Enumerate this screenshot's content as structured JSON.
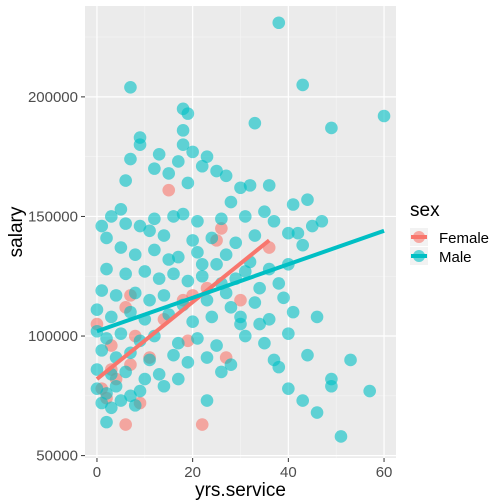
{
  "chart_data": {
    "type": "scatter",
    "xlabel": "yrs.service",
    "ylabel": "salary",
    "xlim": [
      -2.5,
      62.5
    ],
    "ylim": [
      49000,
      238000
    ],
    "x_ticks": [
      0,
      20,
      40,
      60
    ],
    "x_tick_labels": [
      "0",
      "20",
      "40",
      "60"
    ],
    "y_ticks": [
      50000,
      100000,
      150000,
      200000
    ],
    "y_tick_labels": [
      "50000",
      "100000",
      "150000",
      "200000"
    ],
    "grid": true,
    "legend": {
      "title": "sex",
      "position": "right"
    },
    "series": [
      {
        "name": "Female",
        "color": "#F8766D",
        "points": [
          [
            0,
            105000
          ],
          [
            1,
            78000
          ],
          [
            2,
            74000
          ],
          [
            3,
            96000
          ],
          [
            3,
            86000
          ],
          [
            4,
            82000
          ],
          [
            6,
            112000
          ],
          [
            6,
            63000
          ],
          [
            7,
            117000
          ],
          [
            7,
            88000
          ],
          [
            8,
            100000
          ],
          [
            9,
            72000
          ],
          [
            11,
            91000
          ],
          [
            14,
            107000
          ],
          [
            15,
            161000
          ],
          [
            18,
            115000
          ],
          [
            19,
            98000
          ],
          [
            20,
            117000
          ],
          [
            22,
            63000
          ],
          [
            23,
            120000
          ],
          [
            25,
            140000
          ],
          [
            26,
            145000
          ],
          [
            27,
            91000
          ],
          [
            30,
            115000
          ],
          [
            36,
            137000
          ]
        ],
        "trend": {
          "x": [
            0,
            36
          ],
          "y": [
            82000,
            140000
          ]
        }
      },
      {
        "name": "Male",
        "color": "#00BFC4",
        "points": [
          [
            7,
            204000
          ],
          [
            38,
            231000
          ],
          [
            43,
            205000
          ],
          [
            60,
            192000
          ],
          [
            33,
            189000
          ],
          [
            49,
            187000
          ],
          [
            18,
            195000
          ],
          [
            19,
            193000
          ],
          [
            18,
            186000
          ],
          [
            9,
            183000
          ],
          [
            9,
            180000
          ],
          [
            18,
            180000
          ],
          [
            13,
            176000
          ],
          [
            20,
            177000
          ],
          [
            23,
            175000
          ],
          [
            6,
            165000
          ],
          [
            7,
            174000
          ],
          [
            12,
            170000
          ],
          [
            15,
            168000
          ],
          [
            17,
            173000
          ],
          [
            25,
            169000
          ],
          [
            27,
            167000
          ],
          [
            30,
            162000
          ],
          [
            32,
            163000
          ],
          [
            19,
            164000
          ],
          [
            22,
            171000
          ],
          [
            28,
            156000
          ],
          [
            36,
            163000
          ],
          [
            41,
            155000
          ],
          [
            44,
            157000
          ],
          [
            5,
            153000
          ],
          [
            3,
            150000
          ],
          [
            12,
            149000
          ],
          [
            16,
            150000
          ],
          [
            18,
            151000
          ],
          [
            21,
            148000
          ],
          [
            26,
            149000
          ],
          [
            31,
            150000
          ],
          [
            35,
            152000
          ],
          [
            37,
            148000
          ],
          [
            42,
            143000
          ],
          [
            45,
            146000
          ],
          [
            47,
            148000
          ],
          [
            1,
            146000
          ],
          [
            2,
            141000
          ],
          [
            6,
            147000
          ],
          [
            9,
            146000
          ],
          [
            11,
            144000
          ],
          [
            14,
            142000
          ],
          [
            20,
            140000
          ],
          [
            24,
            141000
          ],
          [
            29,
            139000
          ],
          [
            33,
            142000
          ],
          [
            40,
            143000
          ],
          [
            43,
            138000
          ],
          [
            5,
            137000
          ],
          [
            8,
            134000
          ],
          [
            12,
            136000
          ],
          [
            15,
            132000
          ],
          [
            17,
            133000
          ],
          [
            21,
            135000
          ],
          [
            25,
            130000
          ],
          [
            27,
            134000
          ],
          [
            32,
            131000
          ],
          [
            36,
            128000
          ],
          [
            2,
            128000
          ],
          [
            6,
            126000
          ],
          [
            10,
            127000
          ],
          [
            13,
            124000
          ],
          [
            16,
            126000
          ],
          [
            19,
            123000
          ],
          [
            22,
            125000
          ],
          [
            26,
            122000
          ],
          [
            29,
            124000
          ],
          [
            34,
            120000
          ],
          [
            38,
            122000
          ],
          [
            1,
            119000
          ],
          [
            4,
            117000
          ],
          [
            8,
            118000
          ],
          [
            11,
            115000
          ],
          [
            14,
            117000
          ],
          [
            18,
            113000
          ],
          [
            23,
            115000
          ],
          [
            28,
            112000
          ],
          [
            33,
            114000
          ],
          [
            39,
            116000
          ],
          [
            0,
            111000
          ],
          [
            3,
            108000
          ],
          [
            7,
            110000
          ],
          [
            10,
            107000
          ],
          [
            15,
            109000
          ],
          [
            20,
            106000
          ],
          [
            24,
            108000
          ],
          [
            30,
            105000
          ],
          [
            36,
            107000
          ],
          [
            41,
            110000
          ],
          [
            46,
            108000
          ],
          [
            0,
            102000
          ],
          [
            2,
            99000
          ],
          [
            5,
            101000
          ],
          [
            9,
            98000
          ],
          [
            12,
            100000
          ],
          [
            17,
            97000
          ],
          [
            21,
            99000
          ],
          [
            25,
            96000
          ],
          [
            31,
            100000
          ],
          [
            35,
            97000
          ],
          [
            40,
            101000
          ],
          [
            1,
            94000
          ],
          [
            4,
            91000
          ],
          [
            7,
            93000
          ],
          [
            11,
            90000
          ],
          [
            16,
            92000
          ],
          [
            19,
            89000
          ],
          [
            23,
            91000
          ],
          [
            28,
            88000
          ],
          [
            37,
            90000
          ],
          [
            44,
            92000
          ],
          [
            53,
            90000
          ],
          [
            0,
            86000
          ],
          [
            3,
            84000
          ],
          [
            6,
            85000
          ],
          [
            10,
            82000
          ],
          [
            13,
            84000
          ],
          [
            17,
            82000
          ],
          [
            26,
            85000
          ],
          [
            38,
            87000
          ],
          [
            49,
            82000
          ],
          [
            0,
            78000
          ],
          [
            2,
            76000
          ],
          [
            4,
            79000
          ],
          [
            7,
            75000
          ],
          [
            9,
            77000
          ],
          [
            14,
            79000
          ],
          [
            40,
            78000
          ],
          [
            49,
            79000
          ],
          [
            57,
            77000
          ],
          [
            1,
            72000
          ],
          [
            3,
            70000
          ],
          [
            5,
            73000
          ],
          [
            8,
            71000
          ],
          [
            23,
            73000
          ],
          [
            43,
            73000
          ],
          [
            46,
            68000
          ],
          [
            2,
            64000
          ],
          [
            51,
            58000
          ],
          [
            30,
            108000
          ],
          [
            34,
            105000
          ],
          [
            27,
            118000
          ],
          [
            22,
            130000
          ],
          [
            31,
            127000
          ],
          [
            40,
            130000
          ]
        ],
        "trend": {
          "x": [
            0,
            60
          ],
          "y": [
            102000,
            144000
          ]
        }
      }
    ]
  }
}
